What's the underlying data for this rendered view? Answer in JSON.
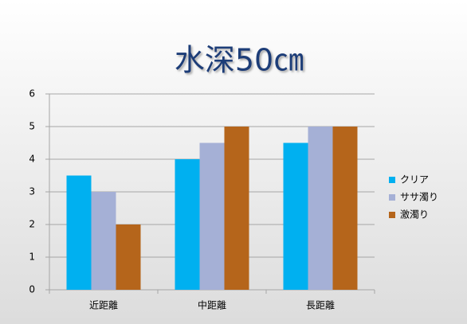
{
  "chart_data": {
    "type": "bar",
    "title": "水深50㎝",
    "categories": [
      "近距離",
      "中距離",
      "長距離"
    ],
    "series": [
      {
        "name": "クリア",
        "color": "#00b0f0",
        "values": [
          3.5,
          4,
          4.5
        ]
      },
      {
        "name": "ササ濁り",
        "color": "#a5b0d6",
        "values": [
          3,
          4.5,
          5
        ]
      },
      {
        "name": "激濁り",
        "color": "#b5651b",
        "values": [
          2,
          5,
          5
        ]
      }
    ],
    "ylim": [
      0,
      6
    ],
    "yticks": [
      0,
      1,
      2,
      3,
      4,
      5,
      6
    ],
    "grid": true,
    "legend": "right"
  }
}
